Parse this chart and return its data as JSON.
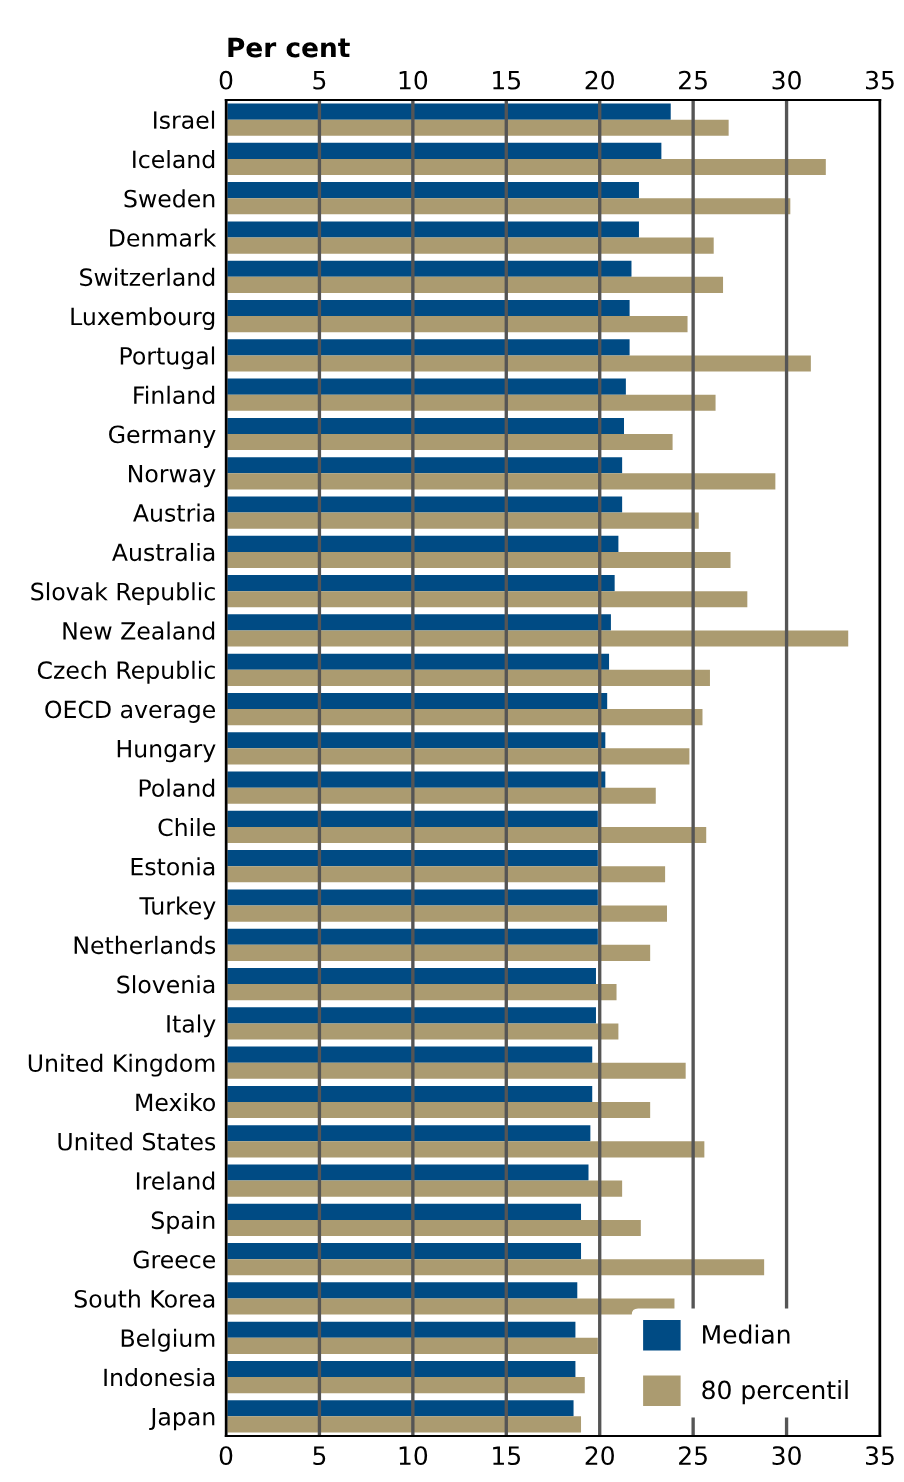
{
  "chart_data": {
    "type": "bar",
    "orientation": "horizontal",
    "x2label": "Per cent",
    "categories": [
      "Israel",
      "Iceland",
      "Sweden",
      "Denmark",
      "Switzerland",
      "Luxembourg",
      "Portugal",
      "Finland",
      "Germany",
      "Norway",
      "Austria",
      "Australia",
      "Slovak Republic",
      "New Zealand",
      "Czech Republic",
      "OECD average",
      "Hungary",
      "Poland",
      "Chile",
      "Estonia",
      "Turkey",
      "Netherlands",
      "Slovenia",
      "Italy",
      "United Kingdom",
      "Mexiko",
      "United States",
      "Ireland",
      "Spain",
      "Greece",
      "South Korea",
      "Belgium",
      "Indonesia",
      "Japan"
    ],
    "series": [
      {
        "name": "Median",
        "color": "#004b84",
        "values": [
          23.8,
          23.3,
          22.1,
          22.1,
          21.7,
          21.6,
          21.6,
          21.4,
          21.3,
          21.2,
          21.2,
          21.0,
          20.8,
          20.6,
          20.5,
          20.4,
          20.3,
          20.3,
          19.9,
          19.9,
          19.9,
          19.9,
          19.8,
          19.8,
          19.6,
          19.6,
          19.5,
          19.4,
          19.0,
          19.0,
          18.8,
          18.7,
          18.7,
          18.6
        ]
      },
      {
        "name": "80 percentil",
        "color": "#ab9b70",
        "values": [
          26.9,
          32.1,
          30.2,
          26.1,
          26.6,
          24.7,
          31.3,
          26.2,
          23.9,
          29.4,
          25.3,
          27.0,
          27.9,
          33.3,
          25.9,
          25.5,
          24.8,
          23.0,
          25.7,
          23.5,
          23.6,
          22.7,
          20.9,
          21.0,
          24.6,
          22.7,
          25.6,
          21.2,
          22.2,
          28.8,
          24.0,
          19.9,
          19.2,
          19.0
        ]
      }
    ],
    "xlim": [
      0,
      35
    ],
    "xticks": [
      0,
      5,
      10,
      15,
      20,
      25,
      30,
      35
    ],
    "x2lim": [
      0,
      35
    ],
    "x2ticks": [
      0,
      5,
      10,
      15,
      20,
      25,
      30,
      35
    ],
    "grid": "x",
    "legend": "bottom right"
  }
}
